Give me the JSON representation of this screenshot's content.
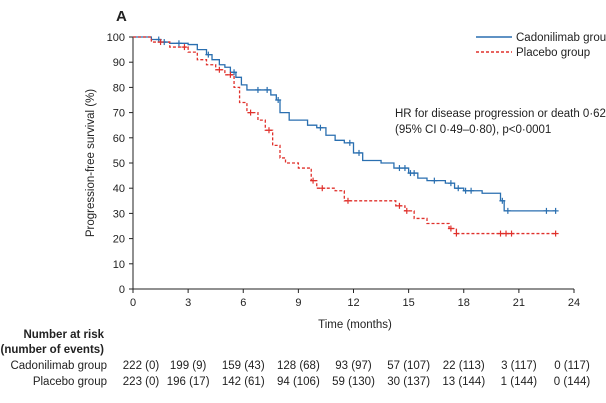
{
  "panel_label": "A",
  "chart_data": {
    "type": "line",
    "subtype": "kaplan-meier step curves",
    "title": "",
    "xlabel": "Time (months)",
    "ylabel": "Progression-free survival (%)",
    "xlim": [
      0,
      24
    ],
    "ylim": [
      0,
      100
    ],
    "x_ticks": [
      0,
      3,
      6,
      9,
      12,
      15,
      18,
      21,
      24
    ],
    "y_ticks": [
      0,
      10,
      20,
      30,
      40,
      50,
      60,
      70,
      80,
      90,
      100
    ],
    "grid": false,
    "legend_position": "top-right",
    "annotation": {
      "line1": "HR for disease progression or death 0·62",
      "line2": "(95% CI 0·49–0·80), p<0·0001"
    },
    "series": [
      {
        "name": "Cadonilimab group",
        "color": "#2a6fb0",
        "linestyle": "solid",
        "steps": [
          [
            0,
            100
          ],
          [
            1.0,
            99
          ],
          [
            1.5,
            98
          ],
          [
            2.0,
            97.5
          ],
          [
            3.0,
            97
          ],
          [
            3.5,
            95
          ],
          [
            4.0,
            93
          ],
          [
            4.3,
            91
          ],
          [
            4.7,
            89
          ],
          [
            5.0,
            88
          ],
          [
            5.3,
            86
          ],
          [
            5.6,
            84
          ],
          [
            5.9,
            81
          ],
          [
            6.2,
            79
          ],
          [
            7.5,
            77
          ],
          [
            7.8,
            75
          ],
          [
            8.0,
            70
          ],
          [
            8.5,
            67
          ],
          [
            9.5,
            65
          ],
          [
            10.0,
            64
          ],
          [
            10.5,
            61
          ],
          [
            11.0,
            59
          ],
          [
            11.5,
            58
          ],
          [
            12.0,
            54
          ],
          [
            12.5,
            51
          ],
          [
            13.5,
            50
          ],
          [
            14.2,
            48
          ],
          [
            15.0,
            46
          ],
          [
            15.5,
            44
          ],
          [
            16.0,
            43
          ],
          [
            17.0,
            42
          ],
          [
            17.5,
            40
          ],
          [
            18.0,
            39
          ],
          [
            19.0,
            38
          ],
          [
            20.0,
            35
          ],
          [
            20.2,
            31
          ],
          [
            23.0,
            31
          ]
        ],
        "censor_times": [
          1.4,
          1.7,
          2.5,
          4.1,
          5.5,
          6.8,
          7.3,
          7.9,
          10.2,
          11.8,
          12.3,
          14.5,
          14.8,
          15.1,
          15.3,
          16.4,
          17.3,
          17.7,
          18.1,
          18.4,
          20.1,
          20.4,
          22.5,
          23.0
        ]
      },
      {
        "name": "Placebo group",
        "color": "#e0302b",
        "linestyle": "dashed",
        "steps": [
          [
            0,
            100
          ],
          [
            1.0,
            98
          ],
          [
            2.0,
            96
          ],
          [
            3.0,
            94
          ],
          [
            3.5,
            91
          ],
          [
            4.0,
            89
          ],
          [
            4.5,
            87
          ],
          [
            5.0,
            85
          ],
          [
            5.5,
            80
          ],
          [
            5.8,
            74
          ],
          [
            6.2,
            70
          ],
          [
            6.8,
            67
          ],
          [
            7.2,
            63
          ],
          [
            7.6,
            57
          ],
          [
            8.0,
            52
          ],
          [
            8.3,
            50
          ],
          [
            9.0,
            48
          ],
          [
            9.7,
            43
          ],
          [
            10.0,
            40
          ],
          [
            11.0,
            39
          ],
          [
            11.5,
            35
          ],
          [
            12.5,
            35
          ],
          [
            14.3,
            33
          ],
          [
            14.8,
            31
          ],
          [
            15.3,
            28
          ],
          [
            16.0,
            26
          ],
          [
            17.2,
            24
          ],
          [
            17.6,
            22
          ],
          [
            23.0,
            22
          ]
        ],
        "censor_times": [
          1.5,
          2.8,
          4.7,
          5.3,
          6.4,
          7.4,
          9.8,
          10.3,
          11.7,
          14.5,
          14.9,
          17.3,
          17.6,
          20.0,
          20.3,
          20.6,
          23.0
        ]
      }
    ]
  },
  "risk_table": {
    "header_line1": "Number at risk",
    "header_line2": "(number of events)",
    "rows": [
      {
        "label": "Cadonilimab group",
        "values": [
          "222 (0)",
          "199 (9)",
          "159 (43)",
          "128 (68)",
          "93 (97)",
          "57 (107)",
          "22 (113)",
          "3 (117)",
          "0 (117)"
        ]
      },
      {
        "label": "Placebo group",
        "values": [
          "223 (0)",
          "196 (17)",
          "142 (61)",
          "94 (106)",
          "59 (130)",
          "30 (137)",
          "13 (144)",
          "1 (144)",
          "0 (144)"
        ]
      }
    ]
  }
}
